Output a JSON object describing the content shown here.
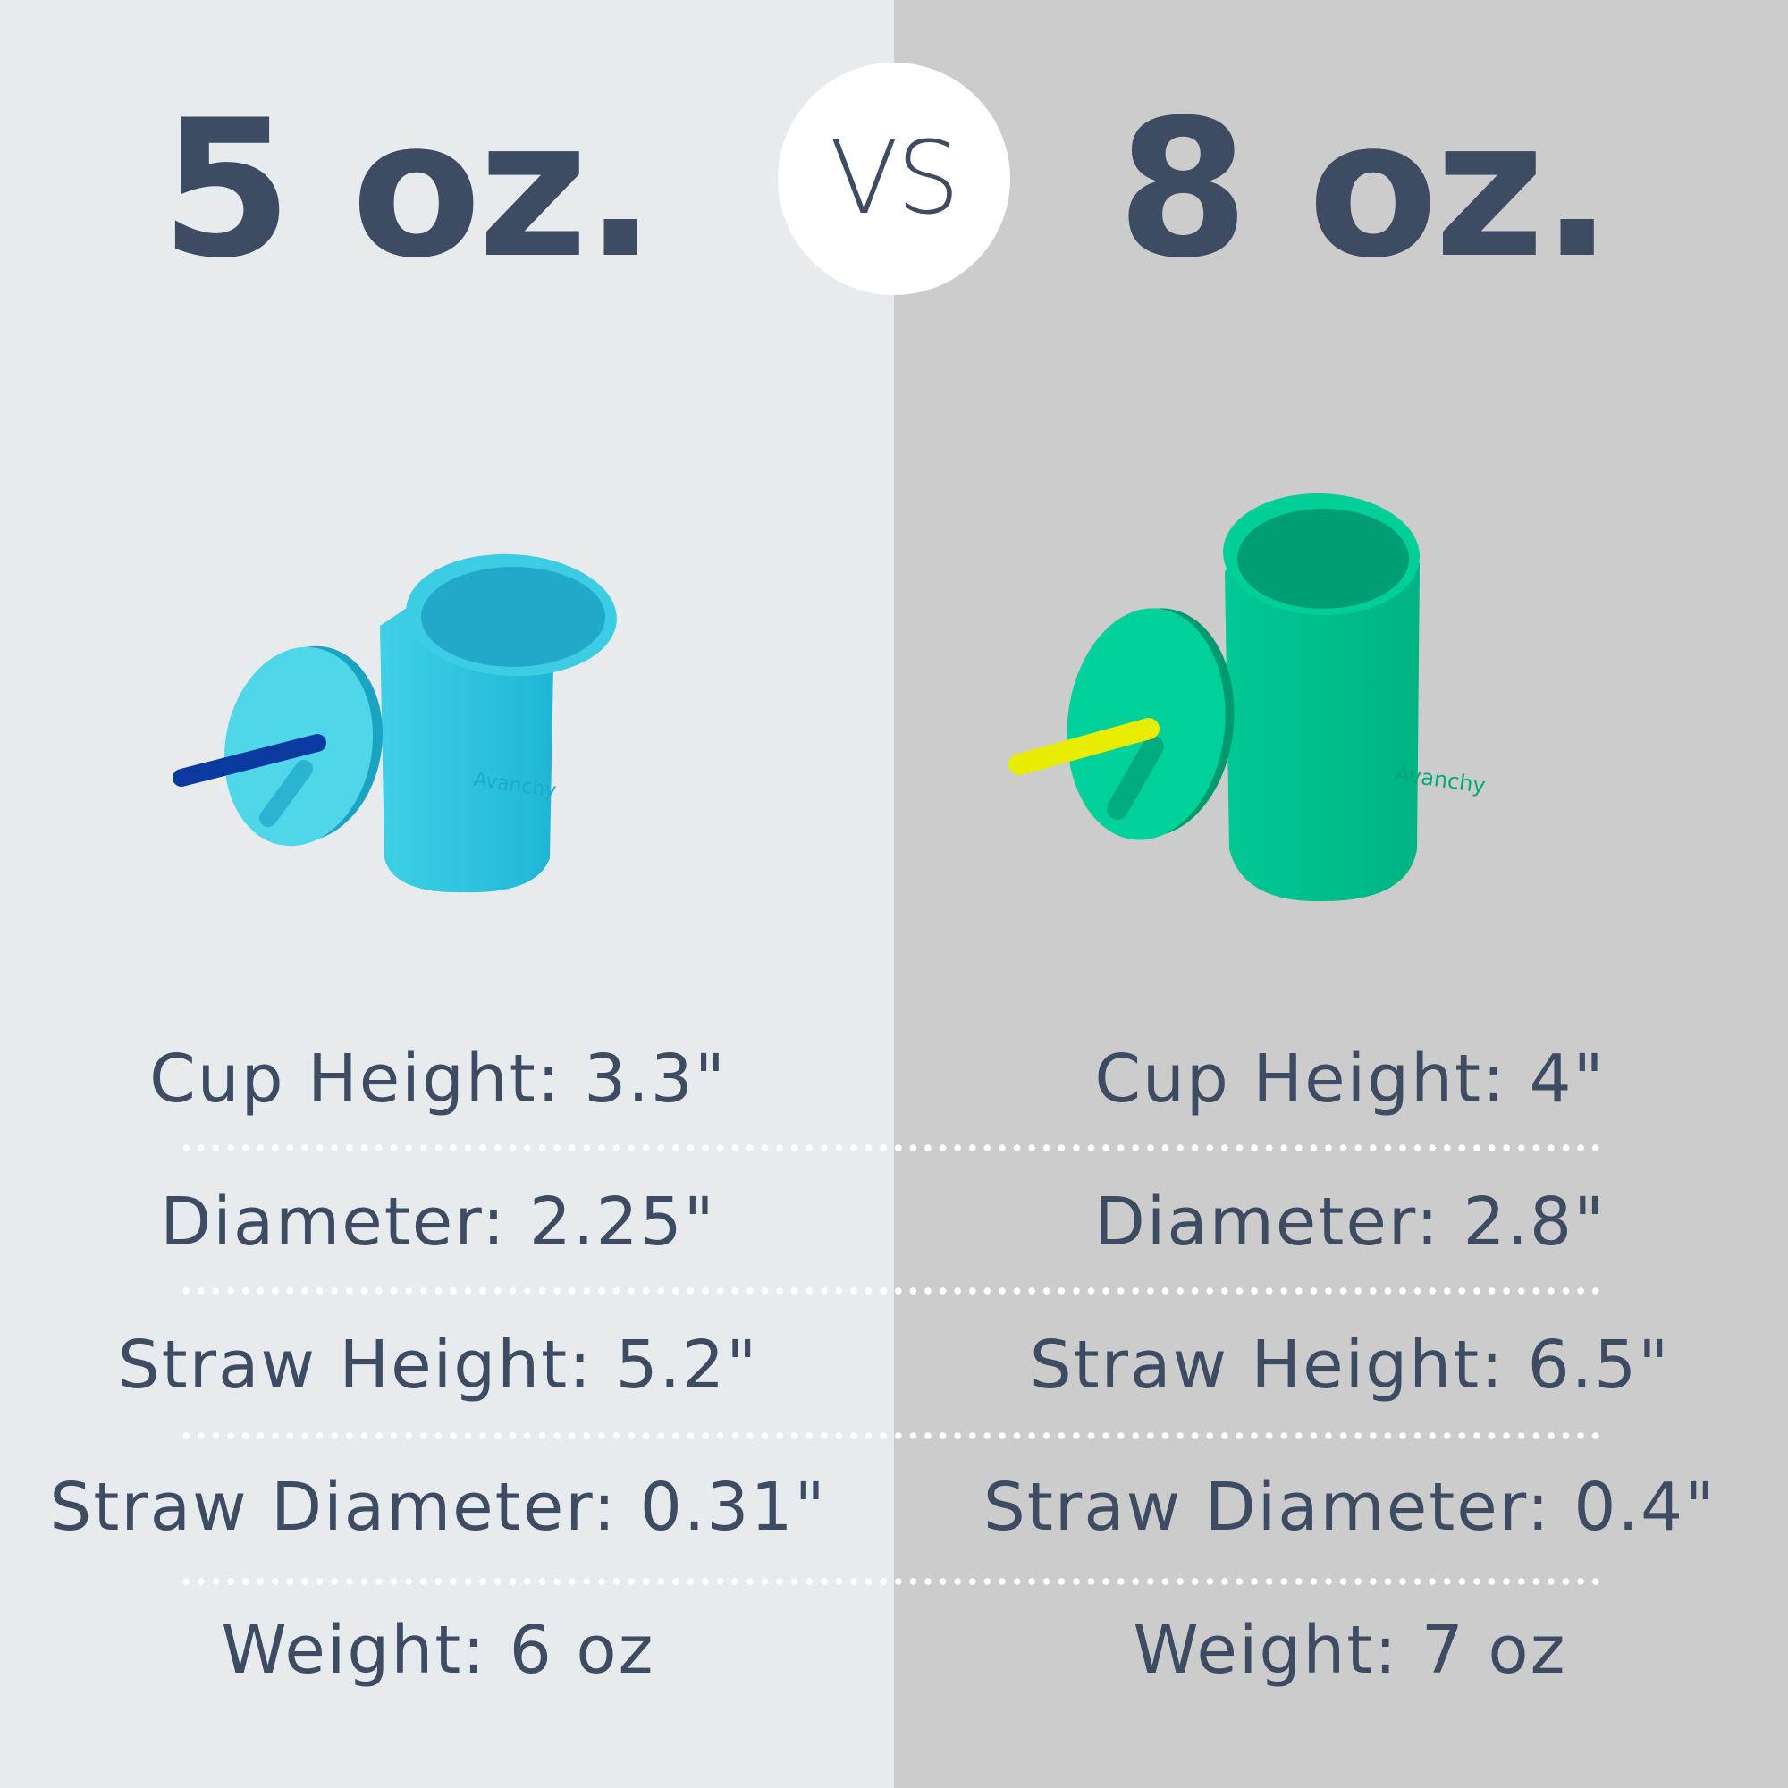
{
  "header": {
    "left_title": "5 oz.",
    "vs_label": "VS",
    "right_title": "8 oz."
  },
  "products": {
    "left": {
      "cup_color": "#2ec4de",
      "lid_color": "#4fd6e8",
      "straw_color": "#0a3aa0",
      "logo": "Avanchy"
    },
    "right": {
      "cup_color": "#00c48f",
      "lid_color": "#00d19a",
      "straw_color": "#e8ec00",
      "logo": "Avanchy"
    }
  },
  "specs": {
    "left": [
      "Cup Height: 3.3\"",
      "Diameter: 2.25\"",
      "Straw Height: 5.2\"",
      "Straw Diameter: 0.31\"",
      "Weight: 6 oz"
    ],
    "right": [
      "Cup Height: 4\"",
      "Diameter: 2.8\"",
      "Straw Height: 6.5\"",
      "Straw Diameter: 0.4\"",
      "Weight: 7 oz"
    ]
  },
  "colors": {
    "left_bg": "#e8ebee",
    "right_bg": "#cccccc",
    "text": "#3d4b63"
  }
}
